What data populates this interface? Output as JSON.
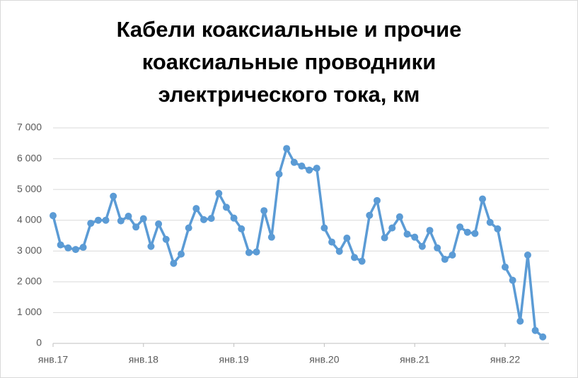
{
  "chart_data": {
    "type": "line",
    "title": "Кабели коаксиальные и прочие коаксиальные проводники электрического тока, км",
    "categories": [
      "янв.17",
      null,
      null,
      null,
      null,
      null,
      null,
      null,
      null,
      null,
      null,
      null,
      "янв.18",
      null,
      null,
      null,
      null,
      null,
      null,
      null,
      null,
      null,
      null,
      null,
      "янв.19",
      null,
      null,
      null,
      null,
      null,
      null,
      null,
      null,
      null,
      null,
      null,
      "янв.20",
      null,
      null,
      null,
      null,
      null,
      null,
      null,
      null,
      null,
      null,
      null,
      "янв.21",
      null,
      null,
      null,
      null,
      null,
      null,
      null,
      null,
      null,
      null,
      null,
      "янв.22",
      null,
      null,
      null,
      null,
      null
    ],
    "series": [
      {
        "color": "#5b9bd5",
        "values": [
          4150,
          3200,
          3100,
          3050,
          3120,
          3900,
          4000,
          4000,
          4780,
          3980,
          4130,
          3780,
          4050,
          3150,
          3880,
          3380,
          2600,
          2900,
          3750,
          4380,
          4020,
          4060,
          4870,
          4420,
          4070,
          3720,
          2950,
          2970,
          4310,
          3450,
          5500,
          6330,
          5880,
          5760,
          5630,
          5690,
          3750,
          3290,
          2990,
          3420,
          2790,
          2670,
          4160,
          4640,
          3430,
          3750,
          4110,
          3550,
          3450,
          3150,
          3670,
          3100,
          2730,
          2870,
          3780,
          3610,
          3570,
          4690,
          3930,
          3720,
          2480,
          2050,
          720,
          2870,
          420,
          210
        ]
      }
    ],
    "ylim": [
      0,
      7000
    ],
    "yticks": [
      0,
      {
        "value": 1000,
        "label": "1 000"
      },
      {
        "value": 2000,
        "label": "2 000"
      },
      {
        "value": 3000,
        "label": "3 000"
      },
      {
        "value": 4000,
        "label": "4 000"
      },
      {
        "value": 5000,
        "label": "5 000"
      },
      {
        "value": 6000,
        "label": "6 000"
      },
      {
        "value": 7000,
        "label": "7 000"
      }
    ],
    "grid": true
  }
}
